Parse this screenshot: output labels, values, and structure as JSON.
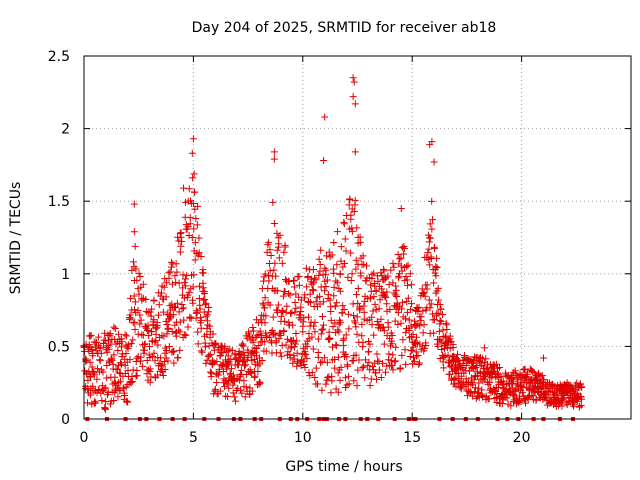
{
  "chart_data": {
    "type": "scatter",
    "title": "Day 204 of 2025, SRMTID for receiver ab18",
    "xlabel": "GPS time / hours",
    "ylabel": "SRMTID / TECUs",
    "xlim": [
      0,
      25
    ],
    "ylim": [
      0,
      2.5
    ],
    "xticks": [
      0,
      5,
      10,
      15,
      20
    ],
    "xtick_labels": [
      "0",
      "5",
      "10",
      "15",
      "20"
    ],
    "yticks": [
      0,
      0.5,
      1,
      1.5,
      2,
      2.5
    ],
    "ytick_labels": [
      "0",
      "0.5",
      "1",
      "1.5",
      "2",
      "2.5"
    ],
    "grid": true,
    "marker": "+",
    "color": "#e00000",
    "x_range_hours": [
      0,
      22.75
    ],
    "series": [
      {
        "name": "SRMTID",
        "notable_points": [
          {
            "x": 2.3,
            "y": 1.48
          },
          {
            "x": 2.3,
            "y": 1.29
          },
          {
            "x": 4.55,
            "y": 1.59
          },
          {
            "x": 5.0,
            "y": 1.93
          },
          {
            "x": 4.95,
            "y": 1.83
          },
          {
            "x": 8.7,
            "y": 1.84
          },
          {
            "x": 8.7,
            "y": 1.79
          },
          {
            "x": 11.0,
            "y": 2.08
          },
          {
            "x": 10.95,
            "y": 1.78
          },
          {
            "x": 12.3,
            "y": 2.35
          },
          {
            "x": 12.35,
            "y": 2.32
          },
          {
            "x": 12.3,
            "y": 2.22
          },
          {
            "x": 12.4,
            "y": 2.17
          },
          {
            "x": 12.4,
            "y": 1.84
          },
          {
            "x": 14.5,
            "y": 1.45
          },
          {
            "x": 15.9,
            "y": 1.91
          },
          {
            "x": 15.8,
            "y": 1.89
          },
          {
            "x": 16.0,
            "y": 1.77
          },
          {
            "x": 18.3,
            "y": 0.49
          },
          {
            "x": 21.0,
            "y": 0.42
          }
        ],
        "envelope": [
          {
            "x": 0.0,
            "low": 0.12,
            "high": 0.55
          },
          {
            "x": 1.0,
            "low": 0.05,
            "high": 0.65
          },
          {
            "x": 2.0,
            "low": 0.08,
            "high": 0.62
          },
          {
            "x": 2.3,
            "low": 0.2,
            "high": 1.3
          },
          {
            "x": 3.0,
            "low": 0.25,
            "high": 0.75
          },
          {
            "x": 4.0,
            "low": 0.3,
            "high": 1.1
          },
          {
            "x": 4.6,
            "low": 0.55,
            "high": 1.5
          },
          {
            "x": 5.0,
            "low": 0.6,
            "high": 1.75
          },
          {
            "x": 5.5,
            "low": 0.35,
            "high": 1.0
          },
          {
            "x": 6.0,
            "low": 0.15,
            "high": 0.55
          },
          {
            "x": 7.0,
            "low": 0.12,
            "high": 0.45
          },
          {
            "x": 8.0,
            "low": 0.2,
            "high": 0.75
          },
          {
            "x": 8.7,
            "low": 0.45,
            "high": 1.6
          },
          {
            "x": 9.5,
            "low": 0.35,
            "high": 0.95
          },
          {
            "x": 10.5,
            "low": 0.2,
            "high": 1.1
          },
          {
            "x": 11.5,
            "low": 0.1,
            "high": 1.3
          },
          {
            "x": 12.3,
            "low": 0.2,
            "high": 1.6
          },
          {
            "x": 13.0,
            "low": 0.2,
            "high": 1.0
          },
          {
            "x": 14.0,
            "low": 0.3,
            "high": 1.05
          },
          {
            "x": 14.6,
            "low": 0.3,
            "high": 1.2
          },
          {
            "x": 15.3,
            "low": 0.35,
            "high": 0.8
          },
          {
            "x": 15.9,
            "low": 0.6,
            "high": 1.5
          },
          {
            "x": 16.3,
            "low": 0.4,
            "high": 0.8
          },
          {
            "x": 17.0,
            "low": 0.15,
            "high": 0.45
          },
          {
            "x": 18.3,
            "low": 0.12,
            "high": 0.42
          },
          {
            "x": 19.5,
            "low": 0.08,
            "high": 0.33
          },
          {
            "x": 20.5,
            "low": 0.12,
            "high": 0.35
          },
          {
            "x": 21.5,
            "low": 0.08,
            "high": 0.25
          },
          {
            "x": 22.75,
            "low": 0.08,
            "high": 0.25
          }
        ],
        "zero_marks": [
          0.15,
          1.05,
          1.9,
          2.55,
          2.85,
          3.45,
          4.05,
          4.6,
          5.5,
          6.15,
          6.85,
          7.15,
          7.8,
          8.1,
          8.95,
          9.45,
          9.75,
          10.2,
          10.75,
          10.95,
          11.1,
          11.65,
          11.95,
          12.65,
          12.95,
          13.45,
          14.2,
          14.85,
          15.05,
          15.15,
          16.25,
          16.85,
          17.45,
          18.0,
          18.9,
          19.35,
          19.85,
          20.55,
          21.0,
          21.75,
          22.35
        ]
      }
    ]
  }
}
